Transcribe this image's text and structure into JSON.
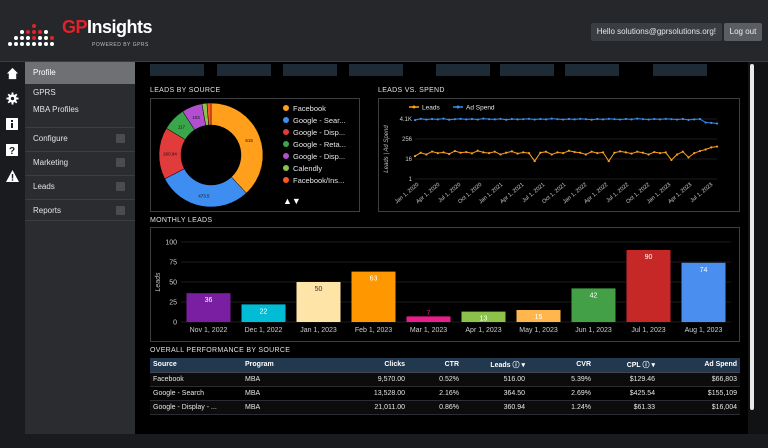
{
  "header": {
    "brand_gp": "GP",
    "brand_rest": "Insights",
    "powered": "POWERED BY GPRS",
    "greeting": "Hello solutions@gprsolutions.org!",
    "logout_label": "Log out"
  },
  "rail_icons": [
    "home-icon",
    "gear-icon",
    "info-icon",
    "help-icon",
    "warning-icon"
  ],
  "menu": {
    "active": "Profile",
    "links": [
      "GPRS",
      "MBA Profiles"
    ],
    "groups": [
      "Configure",
      "Marketing",
      "Leads",
      "Reports"
    ]
  },
  "donut": {
    "title": "LEADS BY SOURCE",
    "legend": [
      "Facebook",
      "Google - Sear...",
      "Google - Disp...",
      "Google - Reta...",
      "Google - Disp...",
      "Calendly",
      "Facebook/Ins..."
    ],
    "colors": [
      "#ff9f1c",
      "#3d8ef0",
      "#e23b3b",
      "#3aa64c",
      "#b24fd0",
      "#8bc34a",
      "#ff5722"
    ],
    "nav": "▲▼",
    "chart_data": {
      "type": "pie",
      "labels": [
        "Facebook",
        "Google - Sear...",
        "Google - Disp...",
        "Google - Reta...",
        "Google - Disp...",
        "Calendly",
        "Facebook/Ins..."
      ],
      "values": [
        615,
        473.5,
        260.94,
        117,
        103,
        25,
        20
      ],
      "value_labels": [
        "615",
        "473.5",
        "260.94",
        "117",
        "103",
        "",
        ""
      ]
    }
  },
  "leads_spend": {
    "title": "LEADS VS. SPEND",
    "legend": [
      "Leads",
      "Ad Spend"
    ],
    "colors": [
      "#ff9f1c",
      "#3d8ef0"
    ],
    "chart_data": {
      "type": "line",
      "scale": "log",
      "ylabel": "Leads | Ad Spend",
      "y_ticks": [
        "4.1K",
        "256",
        "16",
        "1"
      ],
      "x_ticks": [
        "Jan 1, 2020",
        "Apr 1, 2020",
        "Jul 1, 2020",
        "Oct 1, 2020",
        "Jan 1, 2021",
        "Apr 1, 2021",
        "Jul 1, 2021",
        "Oct 1, 2021",
        "Jan 1, 2022",
        "Apr 1, 2022",
        "Jul 1, 2022",
        "Oct 1, 2022",
        "Jan 1, 2023",
        "Apr 1, 2023",
        "Jul 1, 2023"
      ],
      "series": [
        {
          "name": "Leads",
          "values": [
            24,
            38,
            30,
            45,
            36,
            40,
            32,
            48,
            38,
            42,
            35,
            50,
            40,
            36,
            44,
            30,
            38,
            46,
            34,
            40,
            36,
            12,
            38,
            44,
            30,
            40,
            36,
            50,
            42,
            38,
            30,
            44,
            36,
            40,
            12,
            38,
            46,
            40,
            34,
            44,
            38,
            30,
            42,
            36,
            40,
            14,
            30,
            44,
            20,
            36,
            48,
            60,
            80,
            90
          ]
        },
        {
          "name": "Ad Spend",
          "values": [
            3500,
            4200,
            3800,
            4100,
            3900,
            4300,
            3700,
            4000,
            4200,
            3900,
            4100,
            3800,
            4300,
            4000,
            3900,
            4200,
            3700,
            4100,
            3900,
            4000,
            4200,
            3800,
            4100,
            3900,
            4300,
            4000,
            3800,
            4100,
            3900,
            4200,
            4000,
            3700,
            4100,
            3900,
            4200,
            4000,
            3800,
            4100,
            3900,
            4300,
            4000,
            3800,
            4100,
            3900,
            4200,
            4000,
            3800,
            4100,
            3600,
            3900,
            4100,
            2500,
            2400,
            2200
          ]
        }
      ]
    }
  },
  "monthly": {
    "title": "MONTHLY LEADS",
    "chart_data": {
      "type": "bar",
      "ylabel": "Leads",
      "ylim": [
        0,
        100
      ],
      "y_ticks": [
        0,
        25,
        50,
        75,
        100
      ],
      "categories": [
        "Nov 1, 2022",
        "Dec 1, 2022",
        "Jan 1, 2023",
        "Feb 1, 2023",
        "Mar 1, 2023",
        "Apr 1, 2023",
        "May 1, 2023",
        "Jun 1, 2023",
        "Jul 1, 2023",
        "Aug 1, 2023"
      ],
      "values": [
        36,
        22,
        50,
        63,
        7,
        13,
        15,
        42,
        90,
        74
      ],
      "colors": [
        "#7b1fa2",
        "#00bcd4",
        "#ffe4a8",
        "#ff9800",
        "#e91e8c",
        "#8bc34a",
        "#ffb74d",
        "#43a047",
        "#c62828",
        "#4a8ff0"
      ]
    }
  },
  "perf": {
    "title": "OVERALL PERFORMANCE BY SOURCE",
    "columns": [
      "Source",
      "Program",
      "Clicks",
      "CTR",
      "Leads",
      "CVR",
      "CPL",
      "Ad Spend"
    ],
    "rows": [
      [
        "Facebook",
        "MBA",
        "9,570.00",
        "0.52%",
        "516.00",
        "5.39%",
        "$129.46",
        "$66,803"
      ],
      [
        "Google - Search",
        "MBA",
        "13,528.00",
        "2.16%",
        "364.50",
        "2.69%",
        "$425.54",
        "$155,109"
      ],
      [
        "Google - Display - ...",
        "MBA",
        "21,011.00",
        "0.86%",
        "360.94",
        "1.24%",
        "$61.33",
        "$16,004"
      ]
    ]
  }
}
